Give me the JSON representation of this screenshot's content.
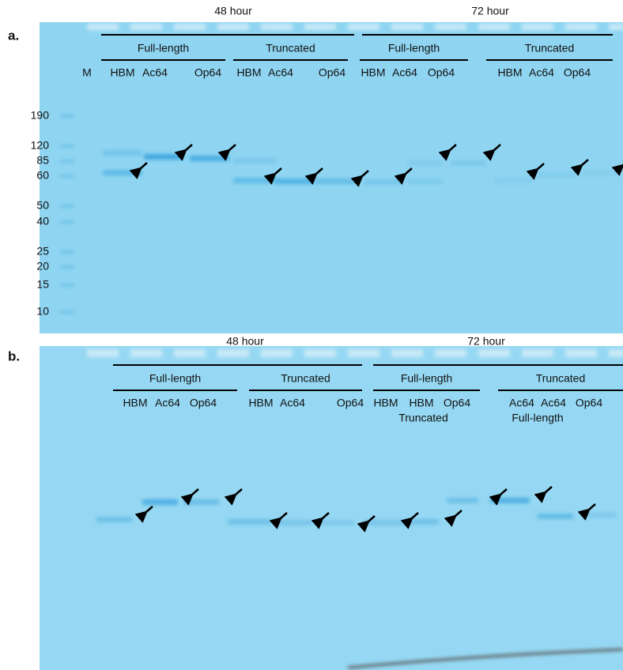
{
  "panels": [
    {
      "label": "a.",
      "times": [
        "48 hour",
        "72 hour"
      ],
      "groups": [
        {
          "name": "Full-length",
          "lanes": [
            "HBM",
            "Ac64",
            "Op64"
          ]
        },
        {
          "name": "Truncated",
          "lanes": [
            "HBM",
            "Ac64",
            "Op64"
          ]
        },
        {
          "name": "Full-length",
          "lanes": [
            "HBM",
            "Ac64",
            "Op64"
          ]
        },
        {
          "name": "Truncated",
          "lanes": [
            "HBM",
            "Ac64",
            "Op64"
          ]
        }
      ],
      "marker_lane": "M",
      "markers": [
        190,
        120,
        85,
        60,
        50,
        40,
        25,
        20,
        15,
        10
      ]
    },
    {
      "label": "b.",
      "times": [
        "48 hour",
        "72 hour"
      ],
      "groups": [
        {
          "name": "Full-length",
          "lanes": [
            "HBM",
            "Ac64",
            "Op64"
          ]
        },
        {
          "name": "Truncated",
          "lanes": [
            "HBM",
            "Ac64",
            "Op64"
          ]
        },
        {
          "name": "Full-length",
          "lanes": [
            "HBM",
            "HBM",
            "Op64"
          ],
          "note": "Truncated"
        },
        {
          "name": "Truncated",
          "lanes": [
            "Ac64",
            "Ac64",
            "Op64"
          ],
          "note": "Full-length"
        }
      ]
    }
  ]
}
